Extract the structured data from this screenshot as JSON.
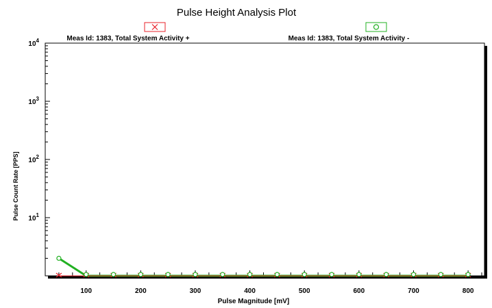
{
  "chart_data": {
    "type": "scatter",
    "title": "Pulse Height Analysis Plot",
    "xlabel": "Pulse Magnitude [mV]",
    "ylabel": "Pulse Count Rate [PPS]",
    "x_scale": "linear",
    "y_scale": "log",
    "xlim": [
      25,
      830
    ],
    "ylim": [
      1,
      10000
    ],
    "x_ticks": [
      100,
      200,
      300,
      400,
      500,
      600,
      700,
      800
    ],
    "y_ticks": [
      {
        "value": 10,
        "base": "10",
        "exp": "1"
      },
      {
        "value": 100,
        "base": "10",
        "exp": "2"
      },
      {
        "value": 1000,
        "base": "10",
        "exp": "3"
      },
      {
        "value": 10000,
        "base": "10",
        "exp": "4"
      }
    ],
    "grid": false,
    "legend_position": "top",
    "series": [
      {
        "name": "Meas Id: 1383, Total System Activity +",
        "marker": "x",
        "color": "#e8202a",
        "x": [
          50,
          100,
          150,
          200,
          250,
          300,
          350,
          400,
          450,
          500,
          550,
          600,
          650,
          700,
          750,
          800
        ],
        "y": [
          1,
          1,
          1,
          1,
          1,
          1,
          1,
          1,
          1,
          1,
          1,
          1,
          1,
          1,
          1,
          1
        ]
      },
      {
        "name": "Meas Id: 1383, Total System Activity -",
        "marker": "o",
        "color": "#22b022",
        "x": [
          50,
          100,
          150,
          200,
          250,
          300,
          350,
          400,
          450,
          500,
          550,
          600,
          650,
          700,
          750,
          800
        ],
        "y": [
          2,
          1,
          1,
          1,
          1,
          1,
          1,
          1,
          1,
          1,
          1,
          1,
          1,
          1,
          1,
          1
        ]
      }
    ]
  }
}
